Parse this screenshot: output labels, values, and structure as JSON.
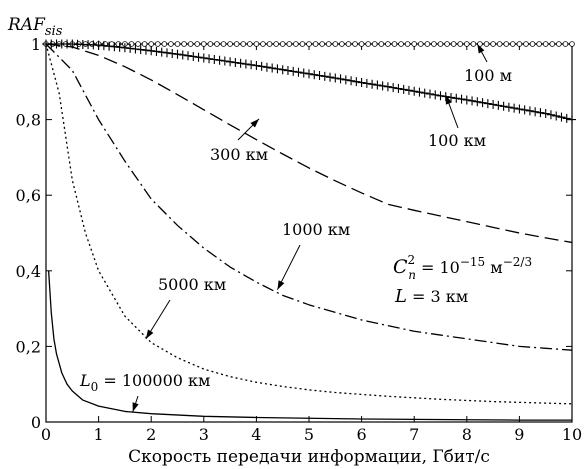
{
  "chart_data": {
    "type": "line",
    "title": "",
    "xlabel": "Скорость передачи информации, Гбит/с",
    "ylabel": "RAF",
    "ylabel_sub": "sis",
    "xlim": [
      0,
      10
    ],
    "ylim": [
      0,
      1
    ],
    "xticks": [
      "0",
      "1",
      "2",
      "3",
      "4",
      "5",
      "6",
      "7",
      "8",
      "9",
      "10"
    ],
    "yticks": [
      "0",
      "0,2",
      "0,4",
      "0,6",
      "0,8",
      "1"
    ],
    "grid": false,
    "series": [
      {
        "name": "100 м",
        "style": "circles",
        "x": [
          0,
          1,
          2,
          3,
          4,
          5,
          6,
          7,
          8,
          9,
          10
        ],
        "y": [
          1.0,
          1.0,
          1.0,
          1.0,
          1.0,
          1.0,
          1.0,
          1.0,
          1.0,
          1.0,
          1.0
        ]
      },
      {
        "name": "100 км",
        "style": "plus",
        "x": [
          0,
          0.5,
          1,
          1.5,
          2,
          2.5,
          3,
          3.5,
          4,
          4.5,
          5,
          5.5,
          6,
          6.5,
          7,
          7.5,
          8,
          8.5,
          9,
          9.5,
          10
        ],
        "y": [
          1.0,
          1.0,
          0.997,
          0.99,
          0.982,
          0.973,
          0.963,
          0.953,
          0.943,
          0.932,
          0.921,
          0.91,
          0.898,
          0.887,
          0.875,
          0.863,
          0.852,
          0.84,
          0.828,
          0.816,
          0.8
        ]
      },
      {
        "name": "300 км",
        "style": "dashed",
        "x": [
          0,
          0.5,
          1,
          1.5,
          2,
          2.5,
          3,
          3.5,
          4,
          4.5,
          5,
          5.5,
          6,
          6.5,
          7,
          7.5,
          8,
          8.5,
          9,
          9.5,
          10
        ],
        "y": [
          1.0,
          0.992,
          0.97,
          0.94,
          0.905,
          0.866,
          0.826,
          0.786,
          0.747,
          0.709,
          0.672,
          0.638,
          0.606,
          0.576,
          0.56,
          0.545,
          0.53,
          0.515,
          0.5,
          0.487,
          0.475
        ]
      },
      {
        "name": "1000 км",
        "style": "dashdot",
        "x": [
          0,
          0.5,
          1,
          1.5,
          2,
          2.5,
          3,
          3.5,
          4,
          4.5,
          5,
          5.5,
          6,
          6.5,
          7,
          7.5,
          8,
          8.5,
          9,
          9.5,
          10
        ],
        "y": [
          1.0,
          0.93,
          0.8,
          0.69,
          0.59,
          0.52,
          0.46,
          0.41,
          0.37,
          0.335,
          0.31,
          0.29,
          0.27,
          0.255,
          0.24,
          0.23,
          0.22,
          0.21,
          0.2,
          0.195,
          0.19
        ]
      },
      {
        "name": "5000 км",
        "style": "dotted",
        "x": [
          0,
          0.25,
          0.5,
          0.75,
          1,
          1.5,
          2,
          2.5,
          3,
          3.5,
          4,
          4.5,
          5,
          5.5,
          6,
          6.5,
          7,
          7.5,
          8,
          8.5,
          9,
          9.5,
          10
        ],
        "y": [
          1.0,
          0.87,
          0.64,
          0.5,
          0.4,
          0.28,
          0.21,
          0.17,
          0.14,
          0.12,
          0.105,
          0.094,
          0.085,
          0.078,
          0.073,
          0.068,
          0.064,
          0.06,
          0.057,
          0.054,
          0.052,
          0.05,
          0.048
        ]
      },
      {
        "name": "L0 = 100000 км",
        "style": "solid",
        "x": [
          0.05,
          0.1,
          0.15,
          0.2,
          0.3,
          0.4,
          0.5,
          0.7,
          1,
          1.5,
          2,
          3,
          4,
          5,
          6,
          7,
          8,
          9,
          10
        ],
        "y": [
          0.4,
          0.29,
          0.22,
          0.18,
          0.13,
          0.1,
          0.082,
          0.058,
          0.042,
          0.028,
          0.022,
          0.015,
          0.012,
          0.01,
          0.008,
          0.007,
          0.006,
          0.005,
          0.005
        ]
      }
    ],
    "annotations": {
      "l100m": "100 м",
      "l100km": "100 км",
      "l300km": "300 км",
      "l1000km": "1000 км",
      "l5000km": "5000 км",
      "l0_sym": "L",
      "l0_sub": "0",
      "l0_val": " = 100000 км",
      "cn_sym": "C",
      "cn_sub": "n",
      "cn_sup": "2",
      "cn_eq": " = 10",
      "cn_exp": "−15",
      "cn_unit": " м",
      "cn_unit_exp": "−2/3",
      "len_sym": "L",
      "len_val": " = 3 км"
    }
  }
}
